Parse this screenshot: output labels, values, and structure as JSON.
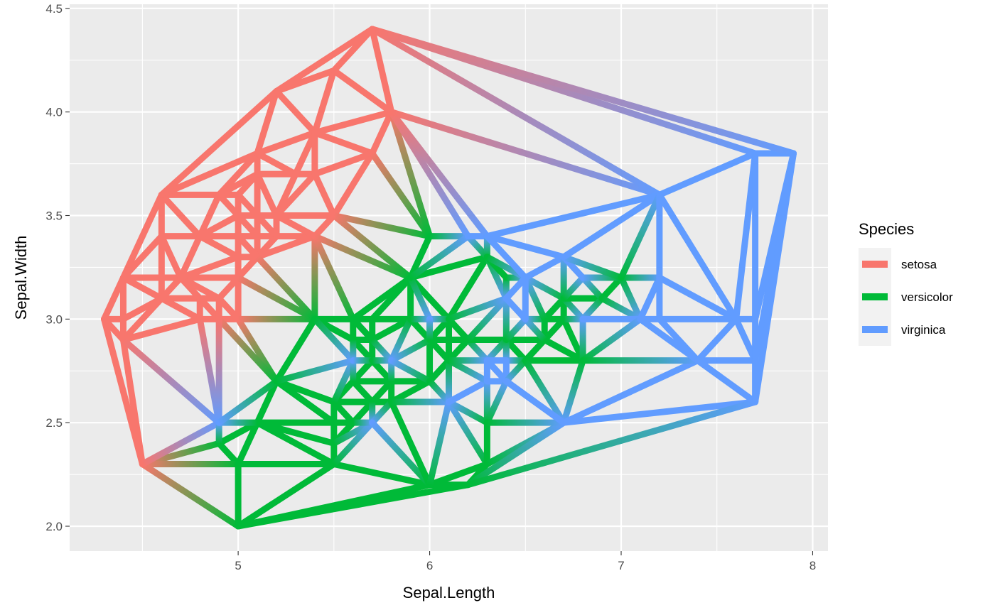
{
  "chart_data": {
    "type": "line",
    "subtype": "delaunay-triangulation",
    "title": "",
    "xlabel": "Sepal.Length",
    "ylabel": "Sepal.Width",
    "xlim": [
      4.12,
      8.08
    ],
    "ylim": [
      1.88,
      4.52
    ],
    "x_ticks": [
      5,
      6,
      7,
      8
    ],
    "x_tick_labels": [
      "5",
      "6",
      "7",
      "8"
    ],
    "y_ticks": [
      2.0,
      2.5,
      3.0,
      3.5,
      4.0,
      4.5
    ],
    "y_tick_labels": [
      "2.0",
      "2.5",
      "3.0",
      "3.5",
      "4.0",
      "4.5"
    ],
    "grid": true,
    "legend": {
      "title": "Species",
      "position": "right",
      "entries": [
        {
          "label": "setosa",
          "color": "#F8766D"
        },
        {
          "label": "versicolor",
          "color": "#00BA38"
        },
        {
          "label": "virginica",
          "color": "#619CFF"
        }
      ]
    },
    "points": {
      "setosa": [
        [
          4.3,
          3.0
        ],
        [
          4.4,
          2.9
        ],
        [
          4.4,
          3.0
        ],
        [
          4.4,
          3.2
        ],
        [
          4.5,
          2.3
        ],
        [
          4.6,
          3.1
        ],
        [
          4.6,
          3.2
        ],
        [
          4.6,
          3.4
        ],
        [
          4.6,
          3.6
        ],
        [
          4.7,
          3.2
        ],
        [
          4.8,
          3.0
        ],
        [
          4.8,
          3.1
        ],
        [
          4.8,
          3.4
        ],
        [
          4.9,
          3.0
        ],
        [
          4.9,
          3.1
        ],
        [
          4.9,
          3.6
        ],
        [
          5.0,
          3.0
        ],
        [
          5.0,
          3.2
        ],
        [
          5.0,
          3.3
        ],
        [
          5.0,
          3.4
        ],
        [
          5.0,
          3.5
        ],
        [
          5.0,
          3.6
        ],
        [
          5.1,
          3.3
        ],
        [
          5.1,
          3.4
        ],
        [
          5.1,
          3.5
        ],
        [
          5.1,
          3.7
        ],
        [
          5.1,
          3.8
        ],
        [
          5.2,
          3.4
        ],
        [
          5.2,
          3.5
        ],
        [
          5.2,
          4.1
        ],
        [
          5.3,
          3.7
        ],
        [
          5.4,
          3.4
        ],
        [
          5.4,
          3.7
        ],
        [
          5.4,
          3.9
        ],
        [
          5.5,
          3.5
        ],
        [
          5.5,
          4.2
        ],
        [
          5.7,
          3.8
        ],
        [
          5.7,
          4.4
        ],
        [
          5.8,
          4.0
        ]
      ],
      "versicolor": [
        [
          4.9,
          2.4
        ],
        [
          5.0,
          2.0
        ],
        [
          5.0,
          2.3
        ],
        [
          5.1,
          2.5
        ],
        [
          5.2,
          2.7
        ],
        [
          5.4,
          3.0
        ],
        [
          5.5,
          2.3
        ],
        [
          5.5,
          2.4
        ],
        [
          5.5,
          2.5
        ],
        [
          5.5,
          2.6
        ],
        [
          5.6,
          2.5
        ],
        [
          5.6,
          2.7
        ],
        [
          5.6,
          2.9
        ],
        [
          5.6,
          3.0
        ],
        [
          5.7,
          2.6
        ],
        [
          5.7,
          2.8
        ],
        [
          5.7,
          2.9
        ],
        [
          5.7,
          3.0
        ],
        [
          5.8,
          2.6
        ],
        [
          5.8,
          2.7
        ],
        [
          5.9,
          3.0
        ],
        [
          5.9,
          3.2
        ],
        [
          6.0,
          2.2
        ],
        [
          6.0,
          2.7
        ],
        [
          6.0,
          2.9
        ],
        [
          6.0,
          3.4
        ],
        [
          6.1,
          2.8
        ],
        [
          6.1,
          2.9
        ],
        [
          6.1,
          3.0
        ],
        [
          6.2,
          2.2
        ],
        [
          6.2,
          2.9
        ],
        [
          6.3,
          2.3
        ],
        [
          6.3,
          2.5
        ],
        [
          6.3,
          3.3
        ],
        [
          6.4,
          2.9
        ],
        [
          6.4,
          3.2
        ],
        [
          6.5,
          2.8
        ],
        [
          6.6,
          2.9
        ],
        [
          6.6,
          3.0
        ],
        [
          6.7,
          3.0
        ],
        [
          6.7,
          3.1
        ],
        [
          6.8,
          2.8
        ],
        [
          6.9,
          3.1
        ],
        [
          7.0,
          3.2
        ]
      ],
      "virginica": [
        [
          4.9,
          2.5
        ],
        [
          5.6,
          2.8
        ],
        [
          5.7,
          2.5
        ],
        [
          5.8,
          2.8
        ],
        [
          6.0,
          2.2
        ],
        [
          6.0,
          3.0
        ],
        [
          6.1,
          2.6
        ],
        [
          6.2,
          3.4
        ],
        [
          6.3,
          2.7
        ],
        [
          6.3,
          2.8
        ],
        [
          6.3,
          3.4
        ],
        [
          6.4,
          2.7
        ],
        [
          6.4,
          2.8
        ],
        [
          6.4,
          3.1
        ],
        [
          6.5,
          3.0
        ],
        [
          6.5,
          3.2
        ],
        [
          6.7,
          2.5
        ],
        [
          6.7,
          3.3
        ],
        [
          6.8,
          3.0
        ],
        [
          6.8,
          3.2
        ],
        [
          6.9,
          3.1
        ],
        [
          7.1,
          3.0
        ],
        [
          7.2,
          3.0
        ],
        [
          7.2,
          3.2
        ],
        [
          7.2,
          3.6
        ],
        [
          7.4,
          2.8
        ],
        [
          7.6,
          3.0
        ],
        [
          7.7,
          2.6
        ],
        [
          7.7,
          2.8
        ],
        [
          7.7,
          3.0
        ],
        [
          7.7,
          3.8
        ],
        [
          7.9,
          3.8
        ]
      ]
    }
  }
}
